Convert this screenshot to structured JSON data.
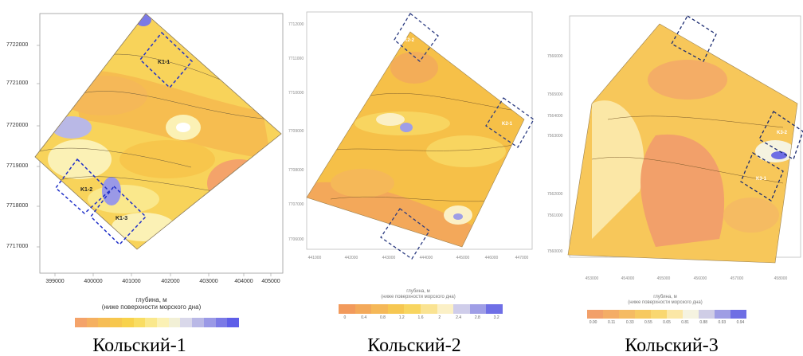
{
  "maps": [
    {
      "caption": "Кольский-1",
      "y_ticks": [
        "7722000",
        "7721000",
        "7720000",
        "7719000",
        "7718000",
        "7717000"
      ],
      "x_ticks": [
        "399000",
        "400000",
        "401000",
        "402000",
        "403000",
        "404000",
        "405000"
      ],
      "zones": [
        "K1-1",
        "K1-2",
        "K1-3"
      ],
      "legend_title_1": "глубина, м",
      "legend_title_2": "(ниже поверхности морского дна)",
      "legend_colors": [
        "#f4a36a",
        "#f5b060",
        "#f6bd55",
        "#f7c74e",
        "#f8d24c",
        "#f9dd63",
        "#fae88c",
        "#fbf1b5",
        "#f2f0d6",
        "#d9d8ea",
        "#b9b8e6",
        "#9a99e6",
        "#7b7ae6",
        "#5e5ee8"
      ]
    },
    {
      "caption": "Кольский-2",
      "y_ticks": [
        "7712000",
        "7711000",
        "7710000",
        "7709000",
        "7708000",
        "7707000",
        "7706000"
      ],
      "x_ticks": [
        "441000",
        "442000",
        "443000",
        "444000",
        "445000",
        "446000",
        "447000"
      ],
      "zones": [
        "K2-2",
        "K2-1",
        "K2-3"
      ],
      "legend_title_1": "глубина, м",
      "legend_title_2": "(ниже поверхности морского дна)",
      "legend_colors": [
        "#f29a5c",
        "#f3a95a",
        "#f5b858",
        "#f6c752",
        "#f8d560",
        "#fae392",
        "#fbf0c6",
        "#cfcdea",
        "#9f9ee6",
        "#6f6fe6"
      ],
      "legend_ticks": [
        "0",
        "0.4",
        "0.8",
        "1.2",
        "1.6",
        "2",
        "2.4",
        "2.8",
        "3.2"
      ]
    },
    {
      "caption": "Кольский-3",
      "y_ticks": [
        "7566000",
        "7565000",
        "7564000",
        "7563000",
        "7562000",
        "7561000",
        "7560000"
      ],
      "x_ticks": [
        "453000",
        "454000",
        "455000",
        "456000",
        "457000",
        "458000"
      ],
      "zones": [
        "K3-3",
        "K3-2",
        "K3-1"
      ],
      "legend_title_1": "глубина, м",
      "legend_title_2": "(ниже поверхности морского дна)",
      "legend_colors": [
        "#f2a06a",
        "#f4ad66",
        "#f5bb62",
        "#f7c960",
        "#f9d770",
        "#fbe7a6",
        "#f5f3e0",
        "#cfcde6",
        "#9e9de4",
        "#6e6ee4"
      ],
      "legend_ticks": [
        "0.00",
        "0.11",
        "0.33",
        "0.55",
        "0.65",
        "0.81",
        "0.88",
        "0.93",
        "0.94"
      ]
    }
  ]
}
